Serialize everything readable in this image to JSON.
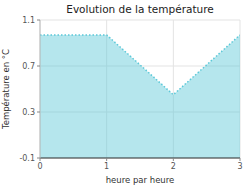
{
  "chart_data": {
    "type": "area",
    "title": "Evolution de la température",
    "xlabel": "heure par heure",
    "ylabel": "Température en °C",
    "x": [
      0,
      1,
      2,
      3
    ],
    "values": [
      0.97,
      0.97,
      0.45,
      0.97
    ],
    "xlim": [
      0,
      3
    ],
    "ylim": [
      -0.1,
      1.1
    ],
    "xticks": [
      0,
      1,
      2,
      3
    ],
    "yticks": [
      -0.1,
      0.3,
      0.7,
      1.1
    ],
    "color": "#5bc8d8",
    "line_style": "dotted",
    "grid": true
  }
}
